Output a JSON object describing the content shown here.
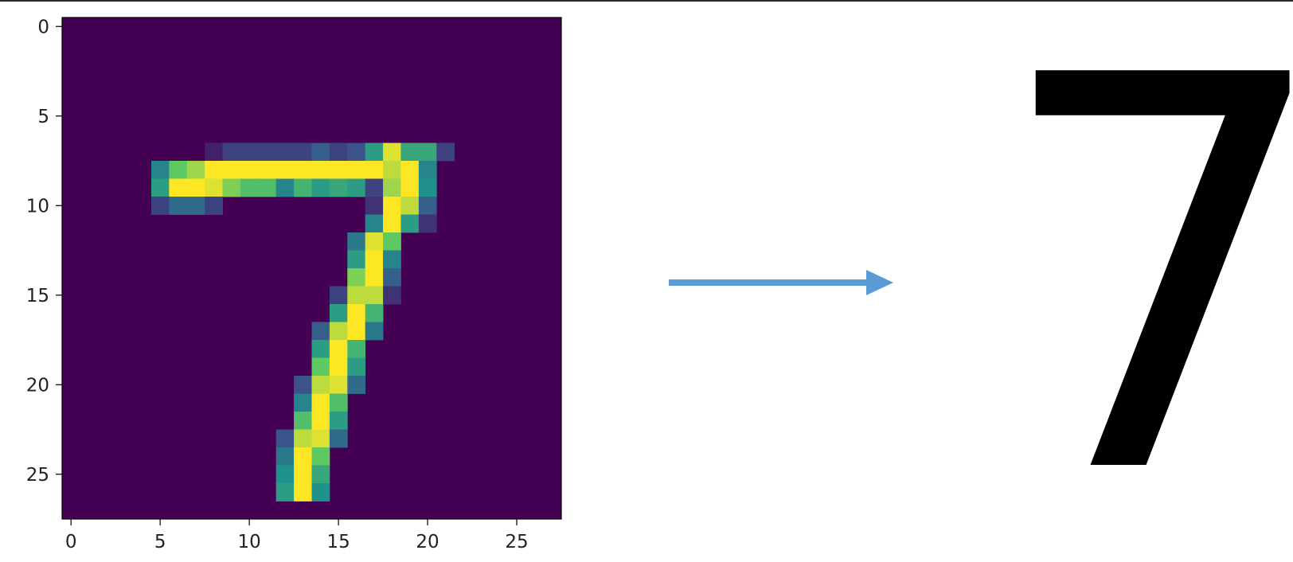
{
  "digit_image": {
    "type": "heatmap",
    "colormap": "viridis",
    "size": [
      28,
      28
    ],
    "x_ticks": [
      "0",
      "5",
      "10",
      "15",
      "20",
      "25"
    ],
    "y_ticks": [
      "0",
      "5",
      "10",
      "15",
      "20",
      "25"
    ],
    "xlim": [
      -0.5,
      27.5
    ],
    "ylim": [
      27.5,
      -0.5
    ],
    "nonzero_pixels": [
      [
        7,
        8,
        0.1
      ],
      [
        7,
        9,
        0.2
      ],
      [
        7,
        10,
        0.2
      ],
      [
        7,
        11,
        0.2
      ],
      [
        7,
        12,
        0.2
      ],
      [
        7,
        13,
        0.2
      ],
      [
        7,
        14,
        0.3
      ],
      [
        7,
        15,
        0.2
      ],
      [
        7,
        16,
        0.25
      ],
      [
        7,
        17,
        0.55
      ],
      [
        7,
        18,
        0.95
      ],
      [
        7,
        19,
        0.6
      ],
      [
        7,
        20,
        0.6
      ],
      [
        7,
        21,
        0.2
      ],
      [
        8,
        5,
        0.45
      ],
      [
        8,
        6,
        0.75
      ],
      [
        8,
        7,
        0.85
      ],
      [
        8,
        8,
        1.0
      ],
      [
        8,
        9,
        1.0
      ],
      [
        8,
        10,
        1.0
      ],
      [
        8,
        11,
        1.0
      ],
      [
        8,
        12,
        1.0
      ],
      [
        8,
        13,
        1.0
      ],
      [
        8,
        14,
        1.0
      ],
      [
        8,
        15,
        1.0
      ],
      [
        8,
        16,
        1.0
      ],
      [
        8,
        17,
        1.0
      ],
      [
        8,
        18,
        0.9
      ],
      [
        8,
        19,
        1.0
      ],
      [
        8,
        20,
        0.45
      ],
      [
        9,
        5,
        0.55
      ],
      [
        9,
        6,
        1.0
      ],
      [
        9,
        7,
        1.0
      ],
      [
        9,
        8,
        0.95
      ],
      [
        9,
        9,
        0.8
      ],
      [
        9,
        10,
        0.7
      ],
      [
        9,
        11,
        0.7
      ],
      [
        9,
        12,
        0.45
      ],
      [
        9,
        13,
        0.65
      ],
      [
        9,
        14,
        0.55
      ],
      [
        9,
        15,
        0.6
      ],
      [
        9,
        16,
        0.55
      ],
      [
        9,
        17,
        0.2
      ],
      [
        9,
        18,
        0.85
      ],
      [
        9,
        19,
        1.0
      ],
      [
        9,
        20,
        0.5
      ],
      [
        10,
        5,
        0.2
      ],
      [
        10,
        6,
        0.35
      ],
      [
        10,
        7,
        0.35
      ],
      [
        10,
        8,
        0.2
      ],
      [
        10,
        17,
        0.15
      ],
      [
        10,
        18,
        1.0
      ],
      [
        10,
        19,
        0.9
      ],
      [
        10,
        20,
        0.3
      ],
      [
        11,
        17,
        0.45
      ],
      [
        11,
        18,
        1.0
      ],
      [
        11,
        19,
        0.55
      ],
      [
        11,
        20,
        0.15
      ],
      [
        12,
        16,
        0.4
      ],
      [
        12,
        17,
        0.95
      ],
      [
        12,
        18,
        0.75
      ],
      [
        13,
        16,
        0.55
      ],
      [
        13,
        17,
        1.0
      ],
      [
        13,
        18,
        0.45
      ],
      [
        14,
        16,
        0.8
      ],
      [
        14,
        17,
        1.0
      ],
      [
        14,
        18,
        0.3
      ],
      [
        15,
        15,
        0.2
      ],
      [
        15,
        16,
        0.9
      ],
      [
        15,
        17,
        0.9
      ],
      [
        15,
        18,
        0.15
      ],
      [
        16,
        15,
        0.55
      ],
      [
        16,
        16,
        1.0
      ],
      [
        16,
        17,
        0.65
      ],
      [
        17,
        14,
        0.3
      ],
      [
        17,
        15,
        0.9
      ],
      [
        17,
        16,
        1.0
      ],
      [
        17,
        17,
        0.4
      ],
      [
        18,
        14,
        0.55
      ],
      [
        18,
        15,
        1.0
      ],
      [
        18,
        16,
        0.65
      ],
      [
        19,
        14,
        0.75
      ],
      [
        19,
        15,
        1.0
      ],
      [
        19,
        16,
        0.55
      ],
      [
        20,
        13,
        0.25
      ],
      [
        20,
        14,
        0.9
      ],
      [
        20,
        15,
        0.95
      ],
      [
        20,
        16,
        0.35
      ],
      [
        21,
        13,
        0.45
      ],
      [
        21,
        14,
        1.0
      ],
      [
        21,
        15,
        0.7
      ],
      [
        22,
        13,
        0.7
      ],
      [
        22,
        14,
        1.0
      ],
      [
        22,
        15,
        0.55
      ],
      [
        23,
        12,
        0.25
      ],
      [
        23,
        13,
        0.9
      ],
      [
        23,
        14,
        0.95
      ],
      [
        23,
        15,
        0.35
      ],
      [
        24,
        12,
        0.4
      ],
      [
        24,
        13,
        1.0
      ],
      [
        24,
        14,
        0.75
      ],
      [
        25,
        12,
        0.5
      ],
      [
        25,
        13,
        1.0
      ],
      [
        25,
        14,
        0.6
      ],
      [
        26,
        12,
        0.55
      ],
      [
        26,
        13,
        1.0
      ],
      [
        26,
        14,
        0.5
      ]
    ]
  },
  "arrow": {
    "color": "#5b9bd5"
  },
  "prediction": {
    "label": "7"
  }
}
